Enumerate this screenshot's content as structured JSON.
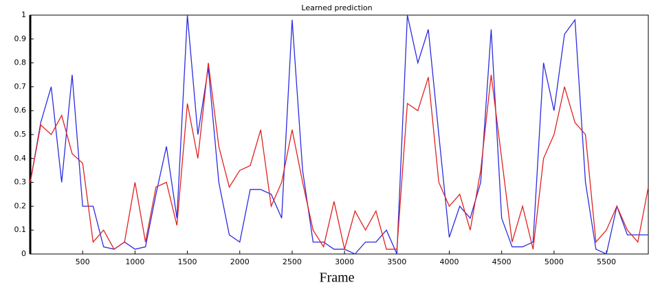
{
  "chart_data": {
    "type": "line",
    "title": "Learned prediction",
    "x_label": "Frame",
    "x": [
      0,
      100,
      200,
      300,
      400,
      500,
      600,
      700,
      800,
      900,
      1000,
      1100,
      1200,
      1300,
      1400,
      1500,
      1600,
      1700,
      1800,
      1900,
      2000,
      2100,
      2200,
      2300,
      2400,
      2500,
      2600,
      2700,
      2800,
      2900,
      3000,
      3100,
      3200,
      3300,
      3400,
      3500,
      3600,
      3700,
      3800,
      3900,
      4000,
      4100,
      4200,
      4300,
      4400,
      4500,
      4600,
      4700,
      4800,
      4900,
      5000,
      5100,
      5200,
      5300,
      5400,
      5500,
      5600,
      5700,
      5800,
      5900
    ],
    "series": [
      {
        "color": "#2a2ae0",
        "values": [
          0.3,
          0.55,
          0.7,
          0.3,
          0.75,
          0.2,
          0.2,
          0.03,
          0.02,
          0.05,
          0.02,
          0.03,
          0.25,
          0.45,
          0.15,
          1.0,
          0.5,
          0.78,
          0.3,
          0.08,
          0.05,
          0.27,
          0.27,
          0.25,
          0.15,
          0.98,
          0.35,
          0.05,
          0.05,
          0.02,
          0.02,
          0.0,
          0.05,
          0.05,
          0.1,
          0.0,
          1.0,
          0.8,
          0.94,
          0.5,
          0.07,
          0.2,
          0.15,
          0.3,
          0.94,
          0.15,
          0.03,
          0.03,
          0.05,
          0.8,
          0.6,
          0.92,
          0.98,
          0.3,
          0.02,
          0.0,
          0.2,
          0.08,
          0.08,
          0.08
        ]
      },
      {
        "color": "#e02020",
        "values": [
          0.3,
          0.54,
          0.5,
          0.58,
          0.42,
          0.38,
          0.05,
          0.1,
          0.02,
          0.05,
          0.3,
          0.05,
          0.28,
          0.3,
          0.12,
          0.63,
          0.4,
          0.8,
          0.45,
          0.28,
          0.35,
          0.37,
          0.52,
          0.2,
          0.3,
          0.52,
          0.3,
          0.1,
          0.03,
          0.22,
          0.02,
          0.18,
          0.1,
          0.18,
          0.02,
          0.02,
          0.63,
          0.6,
          0.74,
          0.3,
          0.2,
          0.25,
          0.1,
          0.35,
          0.75,
          0.4,
          0.05,
          0.2,
          0.02,
          0.4,
          0.5,
          0.7,
          0.55,
          0.5,
          0.05,
          0.1,
          0.2,
          0.1,
          0.05,
          0.28
        ]
      }
    ],
    "xlim": [
      0,
      5900
    ],
    "xticks": [
      500,
      1000,
      1500,
      2000,
      2500,
      3000,
      3500,
      4000,
      4500,
      5000,
      5500
    ],
    "ylim": [
      0,
      1
    ],
    "yticks": [
      0,
      0.1,
      0.2,
      0.3,
      0.4,
      0.5,
      0.6,
      0.7,
      0.8,
      0.9,
      1
    ]
  }
}
